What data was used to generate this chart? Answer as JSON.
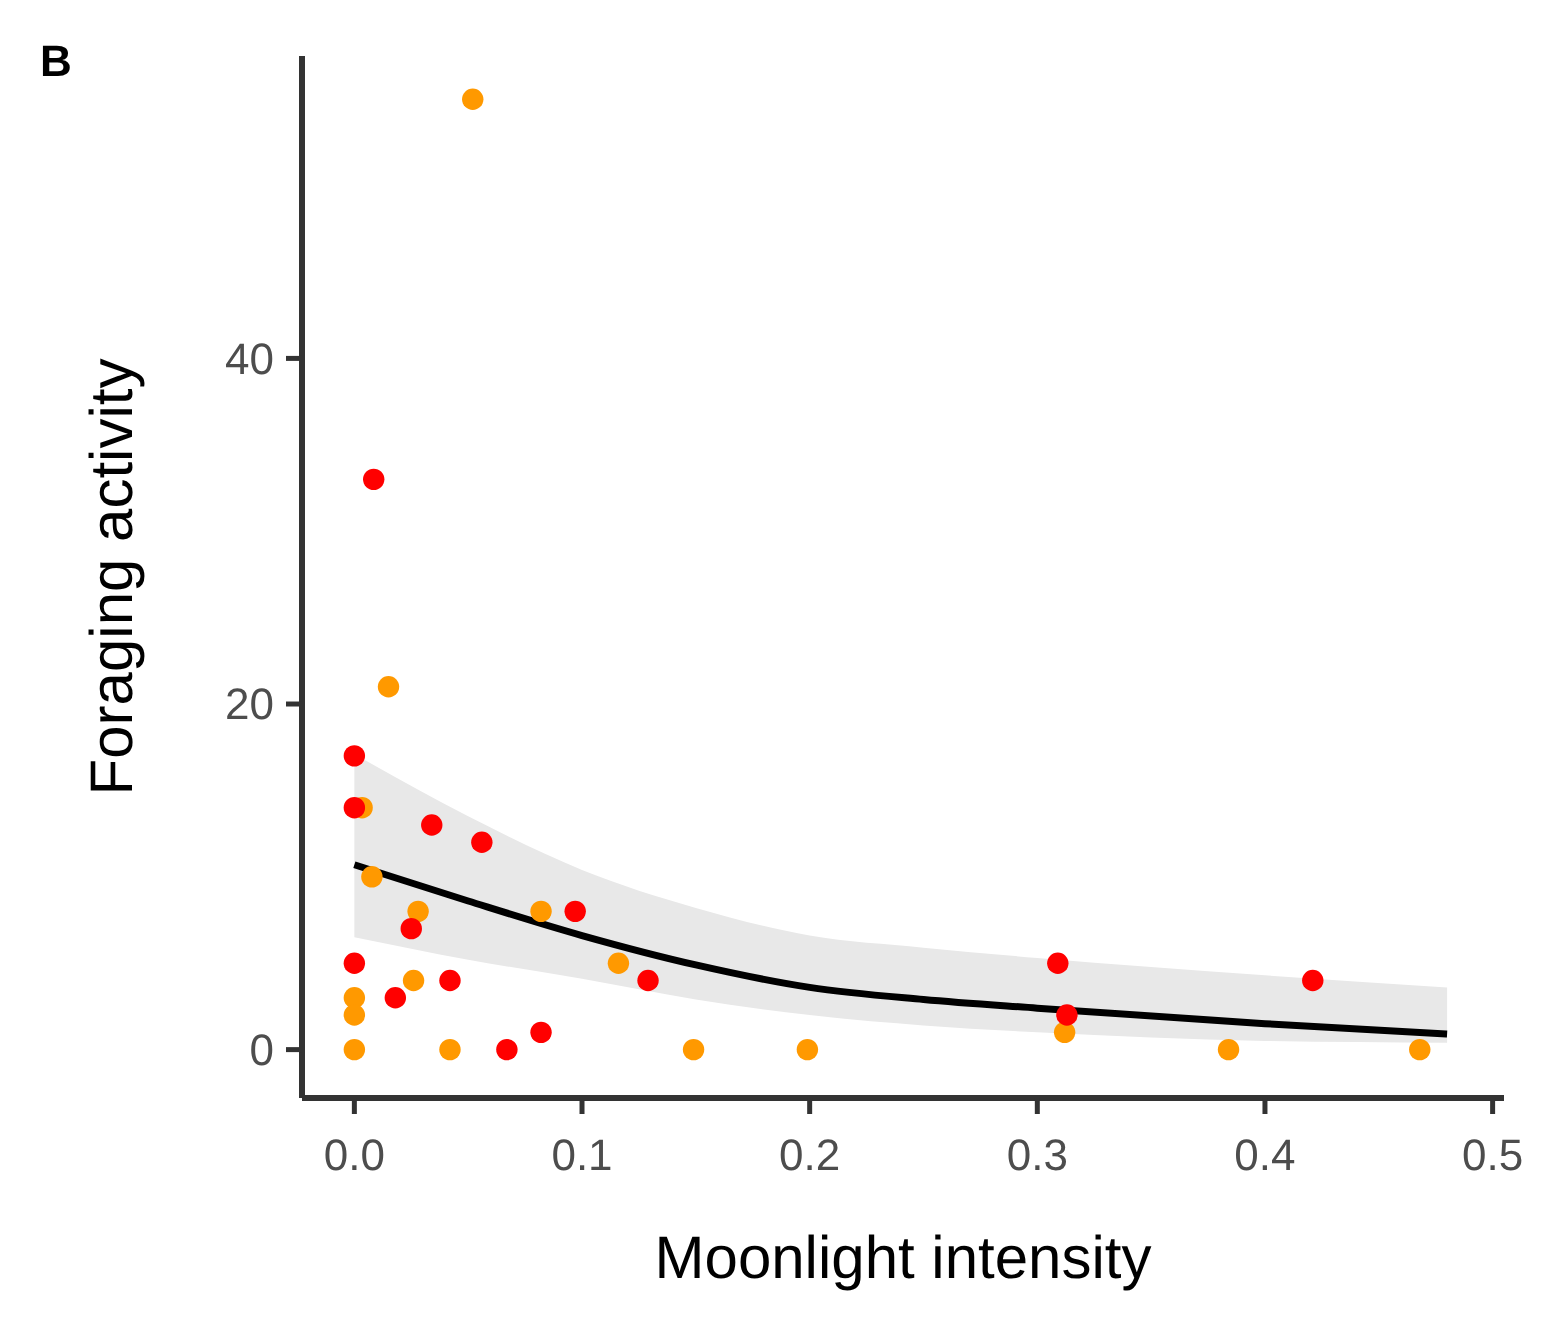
{
  "chart_data": {
    "type": "scatter",
    "title": "B",
    "xlabel": "Moonlight intensity",
    "ylabel": "Foraging activity",
    "xlim": [
      -0.023,
      0.505
    ],
    "ylim": [
      -2.8,
      57.5
    ],
    "xticks": [
      {
        "value": 0,
        "label": "0.0"
      },
      0.1,
      0.2,
      0.3,
      0.4,
      0.5
    ],
    "yticks": [
      0,
      20,
      40
    ],
    "grid": false,
    "marker": "circle",
    "series": [
      {
        "type": "line",
        "marker": "none",
        "color": "#000000",
        "x": [
          0,
          0.05,
          0.1,
          0.15,
          0.2,
          0.25,
          0.3,
          0.4,
          0.48
        ],
        "values": [
          10.7,
          8.6,
          6.6,
          4.9,
          3.6,
          2.9,
          2.4,
          1.5,
          0.9
        ],
        "lower": [
          6.5,
          5.2,
          4.1,
          2.9,
          2.0,
          1.4,
          1.0,
          0.5,
          0.4
        ],
        "upper": [
          17.1,
          13.5,
          10.4,
          8.2,
          6.6,
          5.9,
          5.3,
          4.3,
          3.6
        ]
      },
      {
        "color": "#ff9900",
        "x": [
          0.052,
          0.015,
          0.0034,
          0.0077,
          0.028,
          0.082,
          0.116,
          0.026,
          0,
          0,
          0,
          0.042,
          0.149,
          0.199,
          0.312,
          0.384,
          0.468
        ],
        "values": [
          55,
          21,
          14,
          10,
          8,
          8,
          5,
          4,
          3,
          2,
          0,
          0,
          0,
          0,
          1,
          0,
          0
        ]
      },
      {
        "color": "#ff0000",
        "x": [
          0.0085,
          0,
          0,
          0.034,
          0.056,
          0.025,
          0.097,
          0,
          0.042,
          0.129,
          0.018,
          0.067,
          0.082,
          0.309,
          0.313,
          0.421
        ],
        "values": [
          33,
          17,
          14,
          13,
          12,
          7,
          8,
          5,
          4,
          4,
          3,
          0,
          1,
          5,
          2,
          4
        ]
      }
    ]
  }
}
